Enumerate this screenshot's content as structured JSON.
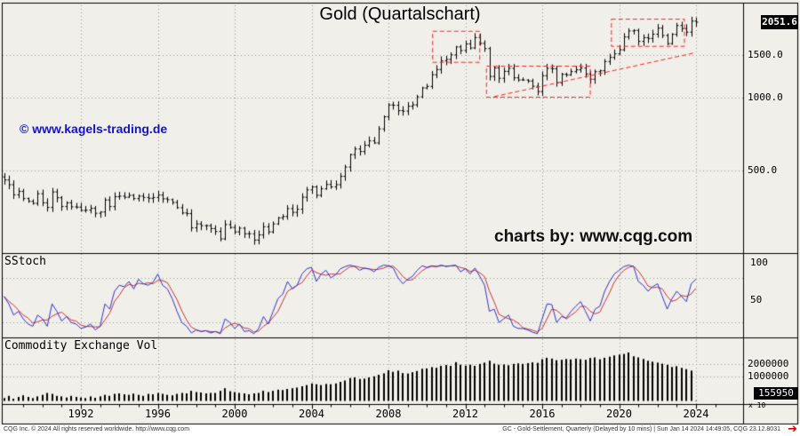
{
  "title": "Gold (Quartalschart)",
  "watermark": "© www.kagels-trading.de",
  "charts_by": "charts by: www.cqg.com",
  "panels": {
    "stoch": {
      "label": "SStoch"
    },
    "volume": {
      "label": "Commodity Exchange Vol"
    }
  },
  "axis": {
    "price_axis": [
      {
        "label": "1500.0",
        "value": 1500
      },
      {
        "label": "1000.0",
        "value": 1000
      },
      {
        "label": "500.0",
        "value": 500
      }
    ],
    "last_price": "2051.6",
    "stoch_axis": [
      {
        "label": "100",
        "value": 100
      },
      {
        "label": "50",
        "value": 50
      }
    ],
    "volume_axis": [
      {
        "label": "2000000",
        "value": 2000000
      },
      {
        "label": "1000000",
        "value": 1000000
      }
    ],
    "last_volume": "155950",
    "volume_multiplier": "x 10",
    "years": [
      "1992",
      "1996",
      "2000",
      "2004",
      "2008",
      "2012",
      "2016",
      "2020",
      "2024"
    ]
  },
  "footer": {
    "left": "CQG Inc. © 2024 All rights reserved worldwide. http://www.cqg.com",
    "right": "GC - Gold-Settlement, Quarterly (Delayed by 10 mins) | Sun Jan 14 2024 14:49:05, CQG 23.12.8031"
  },
  "icons": {
    "footer_arrow": "➔"
  },
  "colors": {
    "background": "#f0efea",
    "bar": "#000000",
    "stoch_k": "#3333cc",
    "stoch_d": "#cc3333",
    "annotation": "#ff2222",
    "watermark": "#1414cc",
    "grid": "#9a9a94",
    "box_bg": "#000000",
    "box_text": "#ffffff"
  },
  "chart_data": [
    {
      "type": "ohlc-bar",
      "name": "Gold quarterly price",
      "x_start": 1988.0,
      "x_step_years": 0.25,
      "y_scale": "log",
      "ylim": [
        230,
        2300
      ],
      "gridlines": [
        1500,
        1000,
        500
      ],
      "last_price": 2051.6,
      "close": [
        457,
        437,
        397,
        410,
        383,
        373,
        366,
        401,
        368,
        352,
        408,
        386,
        355,
        368,
        354,
        353,
        342,
        343,
        349,
        333,
        337,
        378,
        355,
        390,
        392,
        388,
        395,
        383,
        392,
        387,
        384,
        387,
        396,
        382,
        379,
        369,
        351,
        334,
        332,
        290,
        301,
        296,
        296,
        288,
        280,
        261,
        299,
        291,
        279,
        289,
        274,
        274,
        258,
        271,
        293,
        279,
        301,
        319,
        323,
        348,
        336,
        346,
        388,
        416,
        428,
        395,
        420,
        438,
        428,
        437,
        473,
        517,
        582,
        614,
        599,
        636,
        663,
        650,
        743,
        834,
        933,
        930,
        884,
        880,
        922,
        934,
        1008,
        1097,
        1113,
        1244,
        1307,
        1421,
        1439,
        1502,
        1620,
        1566,
        1668,
        1604,
        1771,
        1676,
        1595,
        1224,
        1327,
        1202,
        1284,
        1322,
        1208,
        1184,
        1183,
        1172,
        1115,
        1060,
        1233,
        1322,
        1317,
        1152,
        1249,
        1242,
        1281,
        1303,
        1325,
        1253,
        1192,
        1281,
        1292,
        1410,
        1466,
        1517,
        1577,
        1781,
        1886,
        1895,
        1708,
        1770,
        1757,
        1829,
        1937,
        1807,
        1672,
        1826,
        1986,
        1929,
        1866,
        2072,
        2051.6
      ],
      "annotations": {
        "color": "#ff2222",
        "style": "dashed",
        "boxes": [
          {
            "x0": 2010.3,
            "x1": 2012.75,
            "low": 1400,
            "high": 1880
          },
          {
            "x0": 2013.1,
            "x1": 2018.5,
            "low": 1005,
            "high": 1350
          },
          {
            "x0": 2019.6,
            "x1": 2023.4,
            "low": 1630,
            "high": 2110
          }
        ],
        "trendline": {
          "x0": 2013.5,
          "p0": 1010,
          "x1": 2023.9,
          "p1": 1530
        }
      }
    },
    {
      "type": "line",
      "name": "SStoch",
      "x_start": 1988.0,
      "x_step_years": 0.25,
      "range": [
        0,
        100
      ],
      "reference_lines": [
        80,
        20
      ],
      "series": [
        {
          "name": "slow-k",
          "color": "#3333cc",
          "values": [
            55,
            45,
            30,
            35,
            25,
            18,
            15,
            30,
            25,
            15,
            45,
            35,
            22,
            28,
            20,
            18,
            12,
            14,
            18,
            10,
            15,
            45,
            38,
            62,
            70,
            68,
            75,
            65,
            78,
            72,
            70,
            74,
            85,
            70,
            65,
            52,
            35,
            20,
            15,
            6,
            10,
            8,
            9,
            6,
            8,
            5,
            25,
            20,
            12,
            18,
            8,
            9,
            5,
            12,
            28,
            18,
            35,
            52,
            58,
            75,
            65,
            70,
            85,
            92,
            94,
            75,
            85,
            90,
            80,
            84,
            92,
            95,
            97,
            95,
            90,
            93,
            92,
            88,
            94,
            97,
            96,
            93,
            80,
            72,
            78,
            82,
            90,
            96,
            94,
            96,
            95,
            97,
            95,
            96,
            97,
            88,
            92,
            85,
            93,
            82,
            70,
            35,
            38,
            20,
            25,
            30,
            15,
            12,
            12,
            10,
            7,
            5,
            25,
            45,
            44,
            20,
            28,
            26,
            35,
            42,
            48,
            35,
            22,
            38,
            42,
            62,
            75,
            85,
            90,
            95,
            97,
            95,
            75,
            70,
            62,
            68,
            72,
            55,
            38,
            52,
            62,
            55,
            48,
            72,
            78
          ]
        },
        {
          "name": "slow-d",
          "color": "#cc3333",
          "derived": "sma3 of slow-k"
        }
      ]
    },
    {
      "type": "bar",
      "name": "Commodity Exchange Vol",
      "x_start": 1988.0,
      "x_step_years": 0.25,
      "y_scale": "log",
      "unit_scale": 1000,
      "gridlines": [
        2000000,
        1000000
      ],
      "last_value": 155950,
      "values": [
        300,
        340,
        290,
        320,
        350,
        320,
        300,
        330,
        360,
        400,
        380,
        340,
        330,
        310,
        340,
        320,
        310,
        300,
        330,
        305,
        330,
        360,
        340,
        380,
        390,
        370,
        360,
        385,
        360,
        340,
        380,
        370,
        400,
        380,
        360,
        350,
        380,
        400,
        390,
        450,
        420,
        410,
        390,
        400,
        400,
        450,
        520,
        440,
        420,
        400,
        390,
        370,
        390,
        400,
        450,
        420,
        450,
        480,
        470,
        500,
        520,
        540,
        580,
        620,
        680,
        650,
        620,
        660,
        650,
        680,
        740,
        800,
        920,
        950,
        870,
        890,
        950,
        1010,
        1100,
        1190,
        1420,
        1300,
        1390,
        1210,
        1180,
        1270,
        1360,
        1540,
        1570,
        1690,
        1630,
        1810,
        1900,
        1810,
        2230,
        1930,
        1840,
        1930,
        1810,
        2020,
        2170,
        2410,
        2050,
        1930,
        1960,
        1870,
        2020,
        2080,
        2020,
        2110,
        2200,
        2140,
        2630,
        2840,
        2720,
        2480,
        2540,
        2660,
        2600,
        2720,
        2630,
        2540,
        2810,
        2900,
        2620,
        2840,
        3020,
        3240,
        3390,
        3520,
        3820,
        3090,
        2900,
        2660,
        2410,
        2290,
        2170,
        2040,
        1920,
        1700,
        1780,
        1620,
        1510,
        1390,
        155.95
      ]
    }
  ]
}
